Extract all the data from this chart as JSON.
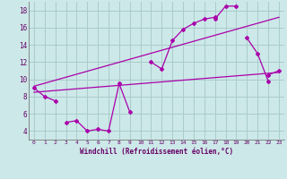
{
  "xlabel": "Windchill (Refroidissement éolien,°C)",
  "bg_color": "#cce8e8",
  "grid_color": "#aacccc",
  "line_color": "#aa00aa",
  "xlim": [
    -0.5,
    23.5
  ],
  "ylim": [
    3,
    19
  ],
  "xticks": [
    0,
    1,
    2,
    3,
    4,
    5,
    6,
    7,
    8,
    9,
    10,
    11,
    12,
    13,
    14,
    15,
    16,
    17,
    18,
    19,
    20,
    21,
    22,
    23
  ],
  "yticks": [
    4,
    6,
    8,
    10,
    12,
    14,
    16,
    18
  ],
  "series1": {
    "x": [
      0,
      1,
      2,
      17,
      18,
      19,
      22,
      23
    ],
    "y": [
      9.0,
      8.0,
      7.5,
      17.0,
      18.5,
      18.5,
      10.5,
      11.0
    ]
  },
  "series2": {
    "x": [
      3,
      4,
      5,
      6,
      7,
      8,
      9,
      11,
      12,
      13,
      14,
      15,
      16,
      17,
      20,
      21,
      22
    ],
    "y": [
      5.0,
      5.2,
      4.0,
      4.2,
      4.0,
      9.5,
      6.2,
      12.0,
      11.2,
      14.5,
      15.8,
      16.5,
      17.0,
      17.2,
      14.8,
      13.0,
      9.8
    ]
  },
  "series3_x": [
    0,
    23
  ],
  "series3_y": [
    8.5,
    10.8
  ],
  "series4_x": [
    0,
    23
  ],
  "series4_y": [
    9.2,
    17.2
  ]
}
